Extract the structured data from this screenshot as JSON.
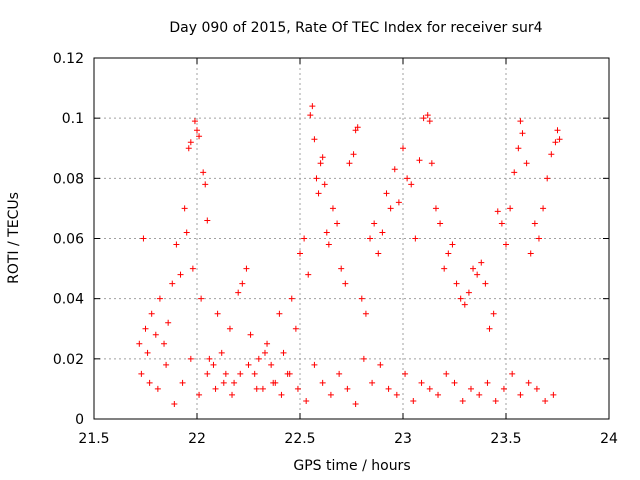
{
  "chart_data": {
    "type": "scatter",
    "title": "Day 090 of 2015, Rate Of TEC Index for receiver sur4",
    "xlabel": "GPS time / hours",
    "ylabel": "ROTI / TECUs",
    "xlim": [
      21.5,
      24
    ],
    "ylim": [
      0,
      0.12
    ],
    "x_ticks": [
      21.5,
      22,
      22.5,
      23,
      23.5,
      24
    ],
    "x_tick_labels": [
      "21.5",
      "22",
      "22.5",
      "23",
      "23.5",
      "24"
    ],
    "y_ticks": [
      0,
      0.02,
      0.04,
      0.06,
      0.08,
      0.1,
      0.12
    ],
    "y_tick_labels": [
      "0",
      "0.02",
      "0.04",
      "0.06",
      "0.08",
      "0.1",
      "0.12"
    ],
    "grid": true,
    "marker": "+",
    "color": "#ff0000",
    "series": [
      {
        "name": "sur4",
        "x": [
          21.72,
          21.74,
          21.75,
          21.76,
          21.78,
          21.8,
          21.82,
          21.84,
          21.86,
          21.88,
          21.9,
          21.92,
          21.94,
          21.95,
          21.96,
          21.97,
          21.98,
          21.99,
          22.0,
          22.01,
          22.02,
          22.03,
          22.04,
          22.05,
          22.06,
          22.08,
          22.1,
          22.12,
          22.14,
          22.16,
          22.18,
          22.2,
          22.22,
          22.24,
          22.26,
          22.28,
          22.3,
          22.32,
          22.34,
          22.36,
          22.38,
          22.4,
          22.42,
          22.44,
          22.46,
          22.48,
          22.5,
          22.52,
          22.54,
          22.55,
          22.56,
          22.57,
          22.58,
          22.59,
          22.6,
          22.61,
          22.62,
          22.63,
          22.64,
          22.66,
          22.68,
          22.7,
          22.72,
          22.74,
          22.76,
          22.77,
          22.78,
          22.8,
          22.82,
          22.84,
          22.86,
          22.88,
          22.9,
          22.92,
          22.94,
          22.96,
          22.98,
          23.0,
          23.02,
          23.04,
          23.06,
          23.08,
          23.1,
          23.12,
          23.13,
          23.14,
          23.16,
          23.18,
          23.2,
          23.22,
          23.24,
          23.26,
          23.28,
          23.3,
          23.32,
          23.34,
          23.36,
          23.38,
          23.4,
          23.42,
          23.44,
          23.46,
          23.48,
          23.5,
          23.52,
          23.54,
          23.56,
          23.57,
          23.58,
          23.6,
          23.62,
          23.64,
          23.66,
          23.68,
          23.7,
          23.72,
          23.74,
          23.75,
          23.76,
          21.73,
          21.77,
          21.81,
          21.85,
          21.89,
          21.93,
          21.97,
          22.01,
          22.05,
          22.09,
          22.13,
          22.17,
          22.21,
          22.25,
          22.29,
          22.33,
          22.37,
          22.41,
          22.45,
          22.49,
          22.53,
          22.57,
          22.61,
          22.65,
          22.69,
          22.73,
          22.77,
          22.81,
          22.85,
          22.89,
          22.93,
          22.97,
          23.01,
          23.05,
          23.09,
          23.13,
          23.17,
          23.21,
          23.25,
          23.29,
          23.33,
          23.37,
          23.41,
          23.45,
          23.49,
          23.53,
          23.57,
          23.61,
          23.65,
          23.69,
          23.73
        ],
        "y": [
          0.025,
          0.06,
          0.03,
          0.022,
          0.035,
          0.028,
          0.04,
          0.025,
          0.032,
          0.045,
          0.058,
          0.048,
          0.07,
          0.062,
          0.09,
          0.092,
          0.05,
          0.099,
          0.096,
          0.094,
          0.04,
          0.082,
          0.078,
          0.066,
          0.02,
          0.018,
          0.035,
          0.022,
          0.015,
          0.03,
          0.012,
          0.042,
          0.045,
          0.05,
          0.028,
          0.015,
          0.02,
          0.01,
          0.025,
          0.018,
          0.012,
          0.035,
          0.022,
          0.015,
          0.04,
          0.03,
          0.055,
          0.06,
          0.048,
          0.101,
          0.104,
          0.093,
          0.08,
          0.075,
          0.085,
          0.087,
          0.078,
          0.062,
          0.058,
          0.07,
          0.065,
          0.05,
          0.045,
          0.085,
          0.088,
          0.096,
          0.097,
          0.04,
          0.035,
          0.06,
          0.065,
          0.055,
          0.062,
          0.075,
          0.07,
          0.083,
          0.072,
          0.09,
          0.08,
          0.078,
          0.06,
          0.086,
          0.1,
          0.101,
          0.099,
          0.085,
          0.07,
          0.065,
          0.05,
          0.055,
          0.058,
          0.045,
          0.04,
          0.038,
          0.042,
          0.05,
          0.048,
          0.052,
          0.045,
          0.03,
          0.035,
          0.069,
          0.065,
          0.058,
          0.07,
          0.082,
          0.09,
          0.099,
          0.095,
          0.085,
          0.055,
          0.065,
          0.06,
          0.07,
          0.08,
          0.088,
          0.092,
          0.096,
          0.093,
          0.015,
          0.012,
          0.01,
          0.018,
          0.005,
          0.012,
          0.02,
          0.008,
          0.015,
          0.01,
          0.012,
          0.008,
          0.015,
          0.018,
          0.01,
          0.022,
          0.012,
          0.008,
          0.015,
          0.01,
          0.006,
          0.018,
          0.012,
          0.008,
          0.015,
          0.01,
          0.005,
          0.02,
          0.012,
          0.018,
          0.01,
          0.008,
          0.015,
          0.006,
          0.012,
          0.01,
          0.008,
          0.015,
          0.012,
          0.006,
          0.01,
          0.008,
          0.012,
          0.006,
          0.01,
          0.015,
          0.008,
          0.012,
          0.01,
          0.006,
          0.008
        ]
      }
    ]
  }
}
